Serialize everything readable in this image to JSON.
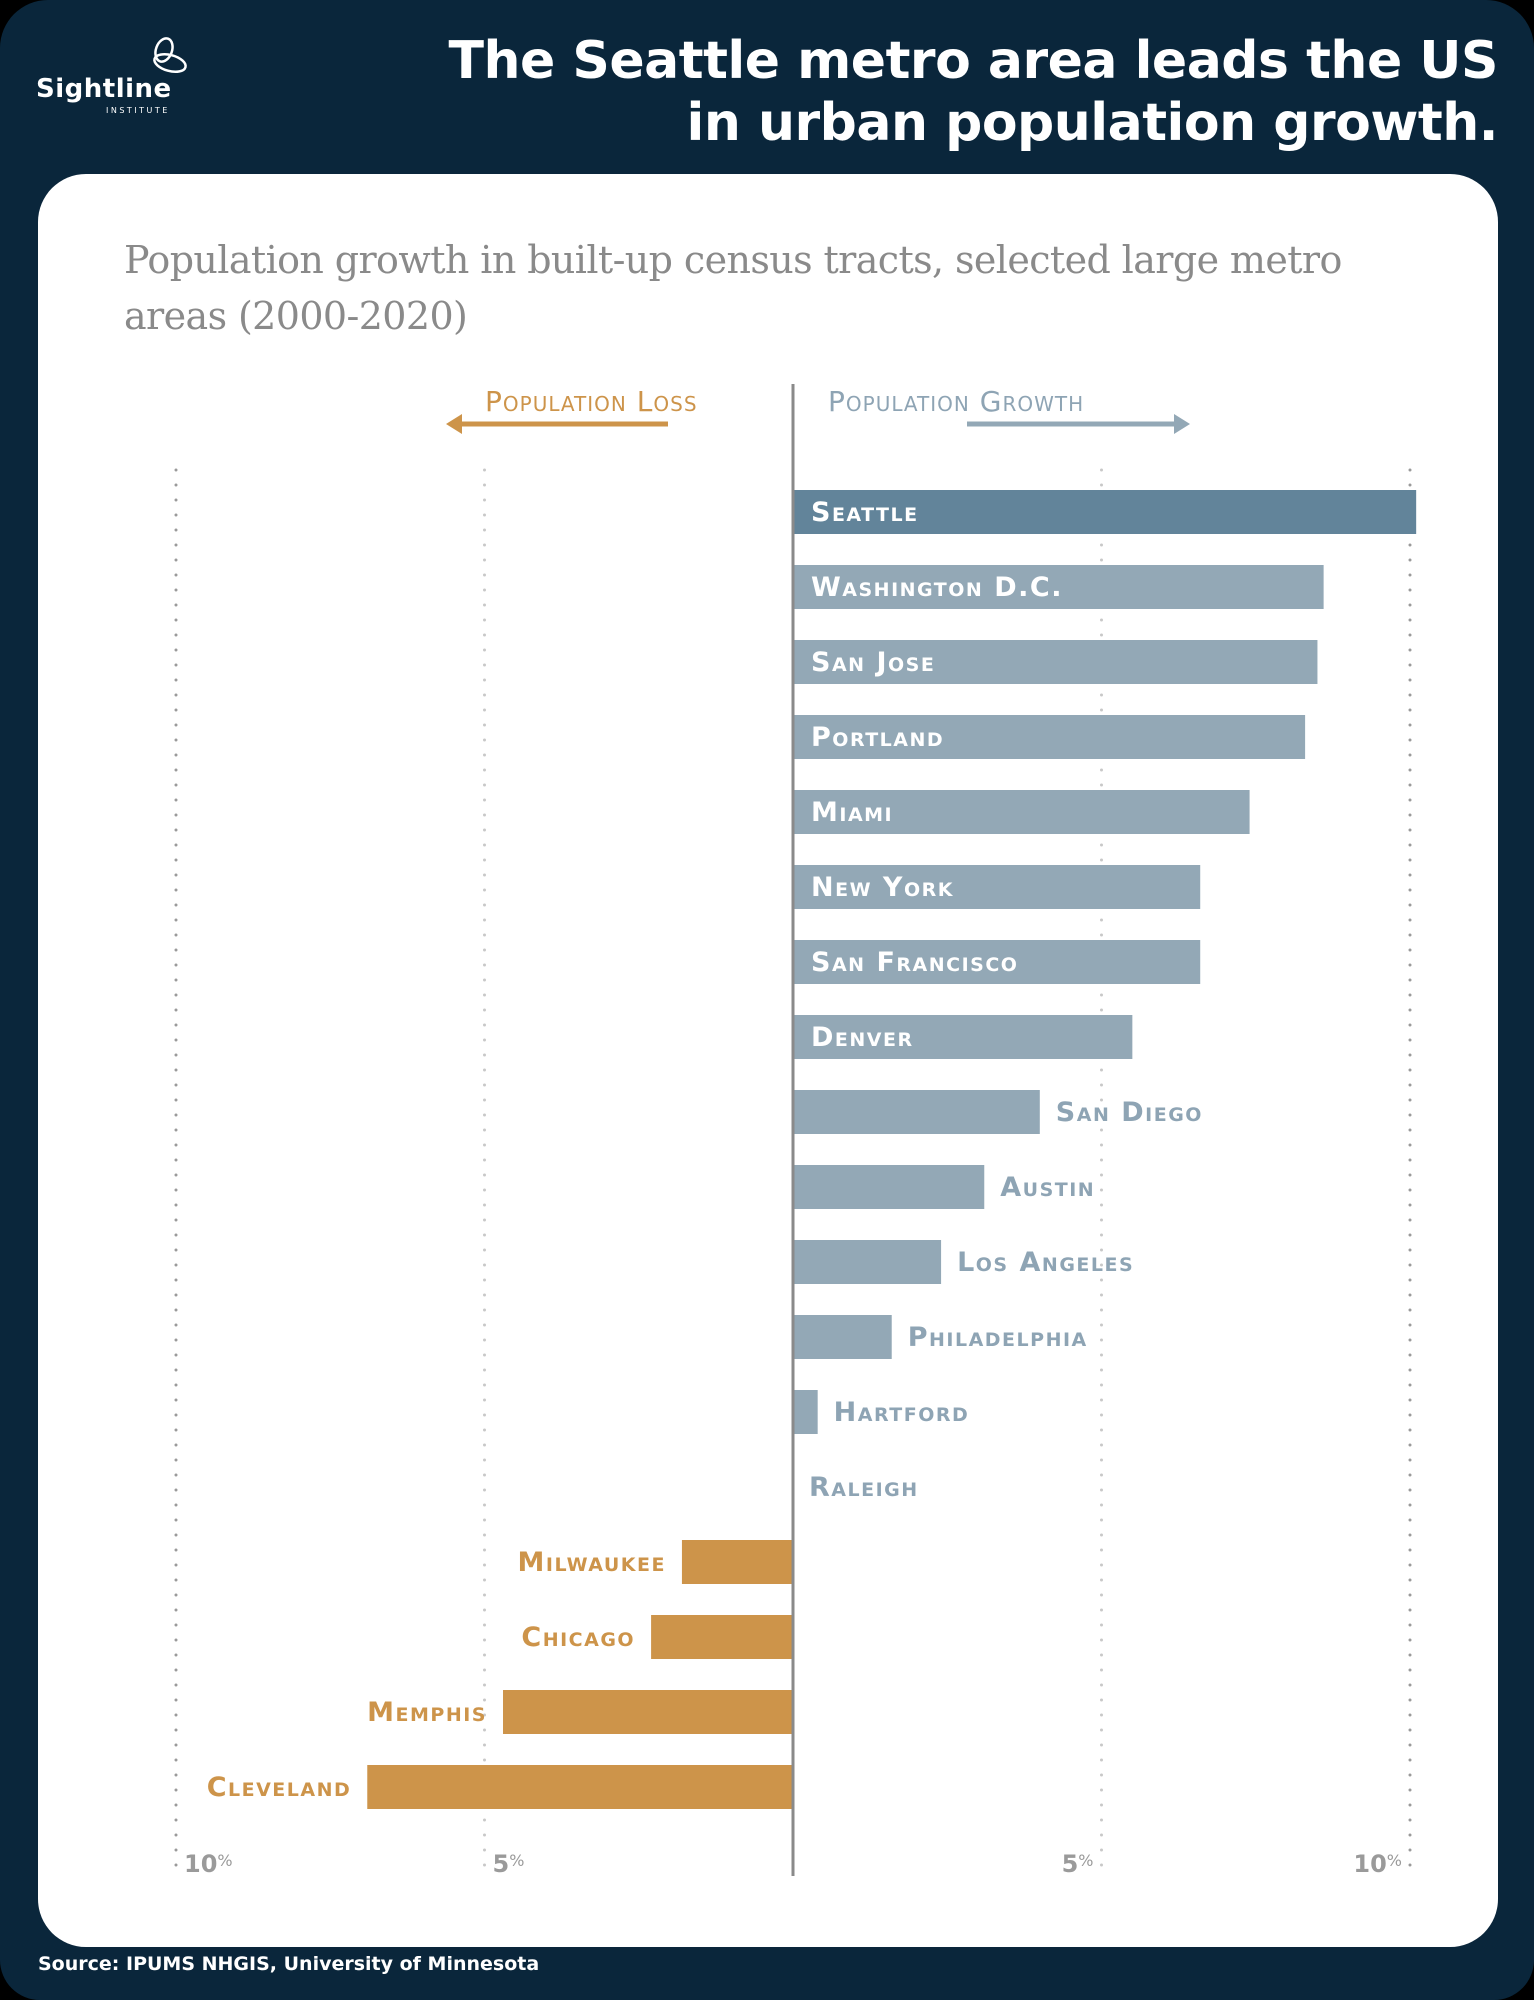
{
  "header": {
    "logo_name": "Sightline",
    "logo_sub": "INSTITUTE",
    "headline_line1": "The Seattle metro area leads the US",
    "headline_line2": "in urban population growth."
  },
  "legend": {
    "loss_label": "Population Loss",
    "growth_label": "Population Growth"
  },
  "footer": {
    "source": "Source: IPUMS NHGIS, University of Minnesota"
  },
  "colors": {
    "background": "#0a263b",
    "highlight": "#62849a",
    "growth": "#93a8b6",
    "loss": "#cd944a",
    "growth_label": "#8ea4b4"
  },
  "chart_data": {
    "type": "bar",
    "orientation": "horizontal",
    "title": "Population growth in built-up census tracts, selected large metro areas (2000-2020)",
    "xlabel": "",
    "ylabel": "",
    "xlim": [
      -10,
      10
    ],
    "unit": "%",
    "grid": true,
    "ticks": [
      {
        "value": -10,
        "label": "10%"
      },
      {
        "value": -5,
        "label": "5%"
      },
      {
        "value": 5,
        "label": "5%"
      },
      {
        "value": 10,
        "label": "10%"
      }
    ],
    "categories": [
      "Seattle",
      "Washington D.C.",
      "San Jose",
      "Portland",
      "Miami",
      "New York",
      "San Francisco",
      "Denver",
      "San Diego",
      "Austin",
      "Los Angeles",
      "Philadelphia",
      "Hartford",
      "Raleigh",
      "Milwaukee",
      "Chicago",
      "Memphis",
      "Cleveland"
    ],
    "values": [
      10.1,
      8.6,
      8.5,
      8.3,
      7.4,
      6.6,
      6.6,
      5.5,
      4.0,
      3.1,
      2.4,
      1.6,
      0.4,
      0.0,
      -1.8,
      -2.3,
      -4.7,
      -6.9
    ],
    "highlight": "Seattle"
  }
}
